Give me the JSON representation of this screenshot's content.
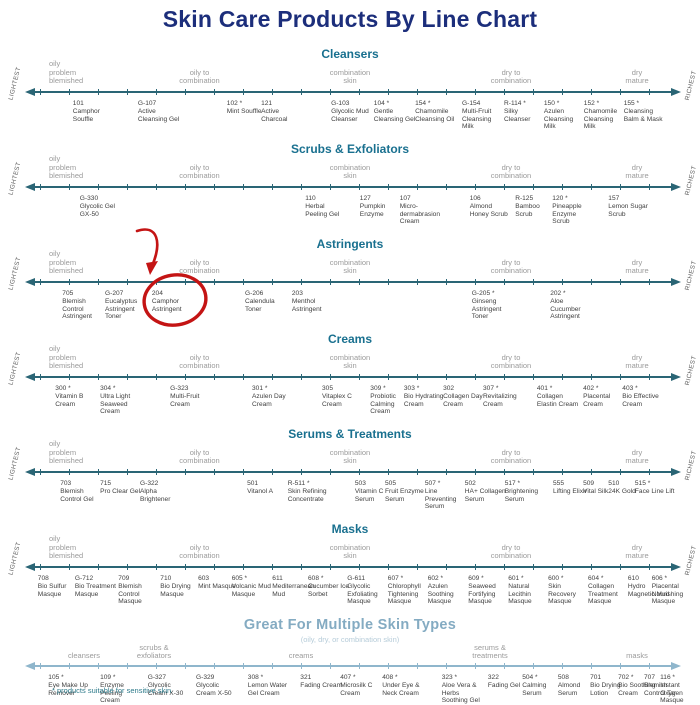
{
  "title": "Skin Care Products By Line Chart",
  "footnote": "* products suitable for sensitive skin",
  "annotation": {
    "shape": "hand-drawn red circle with curved arrow",
    "circled_product": "204 Camphor Astringent",
    "color": "#c41414"
  },
  "colors": {
    "title_navy": "#1c2e7b",
    "section_teal": "#19708f",
    "axis_dark": "#2a6575",
    "axis_light": "#8fb6cc",
    "multi_title": "#84abc2",
    "label_gray": "#9b9b9b",
    "product_text": "#3f3f3f",
    "annotation_red": "#c41414"
  },
  "chart_data": {
    "type": "scatter",
    "description": "Products plotted along a lightest-to-richest axis for each product category; x is percent across the axis",
    "axis": {
      "left_label": "LIGHTEST",
      "right_label": "RICHEST"
    },
    "skin_type_labels": [
      {
        "text": "oily\nproblem\nblemished",
        "x": 7,
        "align": "left"
      },
      {
        "text": "oily to\ncombination",
        "x": 28.5,
        "align": "center"
      },
      {
        "text": "combination\nskin",
        "x": 50,
        "align": "center"
      },
      {
        "text": "dry to\ncombination",
        "x": 73,
        "align": "center"
      },
      {
        "text": "dry\nmature",
        "x": 91,
        "align": "center"
      }
    ],
    "sections": [
      {
        "title": "Cleansers",
        "points": [
          {
            "code": "101",
            "name": "Camphor Souffle",
            "x": 10.4
          },
          {
            "code": "G-107",
            "name": "Active Cleansing Gel",
            "x": 19.7
          },
          {
            "code": "102 *",
            "name": "Mint Souffle",
            "x": 32.4
          },
          {
            "code": "121",
            "name": "Active Charcoal",
            "x": 37.3
          },
          {
            "code": "G-103",
            "name": "Glycolic Mud Cleanser",
            "x": 47.3
          },
          {
            "code": "104 *",
            "name": "Gentle Cleansing Gel",
            "x": 53.4
          },
          {
            "code": "154 *",
            "name": "Chamomile Cleansing Oil",
            "x": 59.3
          },
          {
            "code": "G-154",
            "name": "Multi-Fruit Cleansing Milk",
            "x": 66.0
          },
          {
            "code": "R-114 *",
            "name": "Silky Cleanser",
            "x": 72.0
          },
          {
            "code": "150 *",
            "name": "Azulen Cleansing Milk",
            "x": 77.7
          },
          {
            "code": "152 *",
            "name": "Chamomile Cleansing Milk",
            "x": 83.4
          },
          {
            "code": "155 *",
            "name": "Cleansing Balm & Mask",
            "x": 89.1
          }
        ]
      },
      {
        "title": "Scrubs & Exfoliators",
        "points": [
          {
            "code": "G-330",
            "name": "Glycolic Gel GX-50",
            "x": 11.4
          },
          {
            "code": "110",
            "name": "Herbal Peeling Gel",
            "x": 43.6
          },
          {
            "code": "127",
            "name": "Pumpkin Enzyme",
            "x": 51.4
          },
          {
            "code": "107",
            "name": "Micro-dermabrasion Cream",
            "x": 57.1
          },
          {
            "code": "106",
            "name": "Almond Honey Scrub",
            "x": 67.1
          },
          {
            "code": "R-125",
            "name": "Bamboo Scrub",
            "x": 73.6
          },
          {
            "code": "120 *",
            "name": "Pineapple Enzyme Scrub",
            "x": 78.9
          },
          {
            "code": "157",
            "name": "Lemon Sugar Scrub",
            "x": 86.9
          }
        ]
      },
      {
        "title": "Astringents",
        "points": [
          {
            "code": "705",
            "name": "Blemish Control Astringent",
            "x": 8.9
          },
          {
            "code": "G-207",
            "name": "Eucalyptus Astringent Toner",
            "x": 15.0
          },
          {
            "code": "204",
            "name": "Camphor Astringent",
            "x": 21.7
          },
          {
            "code": "G-206",
            "name": "Calendula Toner",
            "x": 35.0
          },
          {
            "code": "203",
            "name": "Menthol Astringent",
            "x": 41.7
          },
          {
            "code": "G-205 *",
            "name": "Ginseng Astringent Toner",
            "x": 67.4
          },
          {
            "code": "202 *",
            "name": "Aloe Cucumber Astringent",
            "x": 78.6
          }
        ]
      },
      {
        "title": "Creams",
        "points": [
          {
            "code": "300 *",
            "name": "Vitamin B Cream",
            "x": 7.9
          },
          {
            "code": "304 *",
            "name": "Ultra Light Seaweed Cream",
            "x": 14.3
          },
          {
            "code": "G-323",
            "name": "Multi-Fruit Cream",
            "x": 24.3
          },
          {
            "code": "301 *",
            "name": "Azulen Day Cream",
            "x": 36.0
          },
          {
            "code": "305",
            "name": "Vitaplex C Cream",
            "x": 46.0
          },
          {
            "code": "309 *",
            "name": "Probiotic Calming Cream",
            "x": 52.9
          },
          {
            "code": "303 *",
            "name": "Bio Hydrating Cream",
            "x": 57.7
          },
          {
            "code": "302",
            "name": "Collagen Day Cream",
            "x": 63.3
          },
          {
            "code": "307 *",
            "name": "Revitalizing Cream",
            "x": 69.0
          },
          {
            "code": "401 *",
            "name": "Collagen Elastin Cream",
            "x": 76.7
          },
          {
            "code": "402 *",
            "name": "Placental Cream",
            "x": 83.3
          },
          {
            "code": "403 *",
            "name": "Bio Effective Cream",
            "x": 88.9
          }
        ]
      },
      {
        "title": "Serums & Treatments",
        "points": [
          {
            "code": "703",
            "name": "Blemish Control Gel",
            "x": 8.6
          },
          {
            "code": "715",
            "name": "Pro Clear Gel",
            "x": 14.3
          },
          {
            "code": "G-322",
            "name": "Alpha Brightener",
            "x": 20.0
          },
          {
            "code": "501",
            "name": "Vitanol A",
            "x": 35.3
          },
          {
            "code": "R-511 *",
            "name": "Skin Refining Concentrate",
            "x": 41.1
          },
          {
            "code": "503",
            "name": "Vitamin C Serum",
            "x": 50.7
          },
          {
            "code": "505",
            "name": "Fruit Enzyme Serum",
            "x": 55.0
          },
          {
            "code": "507 *",
            "name": "Line Preventing Serum",
            "x": 60.7
          },
          {
            "code": "502",
            "name": "HA+ Collagen Serum",
            "x": 66.4
          },
          {
            "code": "517 *",
            "name": "Brightening Serum",
            "x": 72.1
          },
          {
            "code": "555",
            "name": "Lifting Elixir",
            "x": 79.0
          },
          {
            "code": "509",
            "name": "Vital Silk",
            "x": 83.3
          },
          {
            "code": "510",
            "name": "24K Gold",
            "x": 86.9
          },
          {
            "code": "515 *",
            "name": "Face Line Lift",
            "x": 90.7
          }
        ]
      },
      {
        "title": "Masks",
        "points": [
          {
            "code": "708",
            "name": "Bio Sulfur Masque",
            "x": 5.4
          },
          {
            "code": "G-712",
            "name": "Bio Treatment Masque",
            "x": 10.7
          },
          {
            "code": "709",
            "name": "Blemish Control Masque",
            "x": 16.9
          },
          {
            "code": "710",
            "name": "Bio Drying Masque",
            "x": 22.9
          },
          {
            "code": "603",
            "name": "Mint Masque",
            "x": 28.3
          },
          {
            "code": "605 *",
            "name": "Volcanic Mud Masque",
            "x": 33.1
          },
          {
            "code": "611",
            "name": "Mediterranean Mud",
            "x": 38.9
          },
          {
            "code": "608 *",
            "name": "Cucumber Ice Sorbet",
            "x": 44.0
          },
          {
            "code": "G-611",
            "name": "Glycolic Exfoliating Masque",
            "x": 49.6
          },
          {
            "code": "607 *",
            "name": "Chlorophyll Tightening Masque",
            "x": 55.4
          },
          {
            "code": "602 *",
            "name": "Azulen Soothing Masque",
            "x": 61.1
          },
          {
            "code": "609 *",
            "name": "Seaweed Fortifying Masque",
            "x": 66.9
          },
          {
            "code": "601 *",
            "name": "Natural Lecithin Masque",
            "x": 72.6
          },
          {
            "code": "600 *",
            "name": "Skin Recovery Masque",
            "x": 78.3
          },
          {
            "code": "604 *",
            "name": "Collagen Treatment Masque",
            "x": 84.0
          },
          {
            "code": "610",
            "name": "Hydro Magnetic Mud",
            "x": 89.7
          },
          {
            "code": "606 *",
            "name": "Placental Nourishing Masque",
            "x": 93.1
          }
        ]
      },
      {
        "title": "Great For Multiple Skin Types",
        "subtitle": "(oily, dry, or combination skin)",
        "multi": true,
        "labels": [
          {
            "text": "cleansers",
            "x": 12,
            "align": "center"
          },
          {
            "text": "scrubs &\nexfoliators",
            "x": 22,
            "align": "center"
          },
          {
            "text": "creams",
            "x": 43,
            "align": "center"
          },
          {
            "text": "serums &\ntreatments",
            "x": 70,
            "align": "center"
          },
          {
            "text": "masks",
            "x": 91,
            "align": "center"
          }
        ],
        "points": [
          {
            "code": "105 *",
            "name": "Eye Make Up Remover",
            "x": 6.9
          },
          {
            "code": "109 *",
            "name": "Enzyme Peeling Cream",
            "x": 14.3
          },
          {
            "code": "G-327",
            "name": "Glycolic Cream X-30",
            "x": 21.1
          },
          {
            "code": "G-329",
            "name": "Glycolic Cream X-50",
            "x": 28.0
          },
          {
            "code": "308 *",
            "name": "Lemon Water Gel Cream",
            "x": 35.4
          },
          {
            "code": "321",
            "name": "Fading Cream",
            "x": 42.9
          },
          {
            "code": "407 *",
            "name": "Microsilk C Cream",
            "x": 48.6
          },
          {
            "code": "408 *",
            "name": "Under Eye & Neck Cream",
            "x": 54.6
          },
          {
            "code": "323 *",
            "name": "Aloe Vera & Herbs Soothing Gel",
            "x": 63.1
          },
          {
            "code": "322",
            "name": "Fading Gel",
            "x": 69.7
          },
          {
            "code": "504 *",
            "name": "Calming Serum",
            "x": 74.6
          },
          {
            "code": "508",
            "name": "Almond Serum",
            "x": 79.7
          },
          {
            "code": "701",
            "name": "Bio Drying Lotion",
            "x": 84.3
          },
          {
            "code": "702 *",
            "name": "Bio Soothing Cream",
            "x": 88.3
          },
          {
            "code": "707",
            "name": "Blemish Control Tar",
            "x": 92.0
          },
          {
            "code": "116 *",
            "name": "Instant Oxygen Masque",
            "x": 94.3
          }
        ]
      }
    ]
  }
}
